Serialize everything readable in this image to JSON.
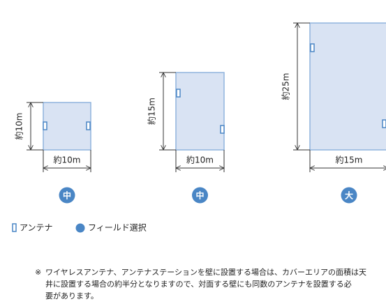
{
  "rooms": [
    {
      "height_label": "約10m",
      "width_label": "約10m",
      "size": "中"
    },
    {
      "height_label": "約15m",
      "width_label": "約10m",
      "size": "中"
    },
    {
      "height_label": "約25m",
      "width_label": "約15m",
      "size": "大"
    }
  ],
  "legend": {
    "antenna": "アンテナ",
    "field": "フィールド選択"
  },
  "note": {
    "mark": "※",
    "lines": [
      "ワイヤレスアンテナ、アンテナステーションを壁に設置する場合は、カバーエリアの面積は天",
      "井に設置する場合の約半分となりますので、対面する壁にも同数のアンテナを設置する必",
      "要があります。"
    ]
  }
}
